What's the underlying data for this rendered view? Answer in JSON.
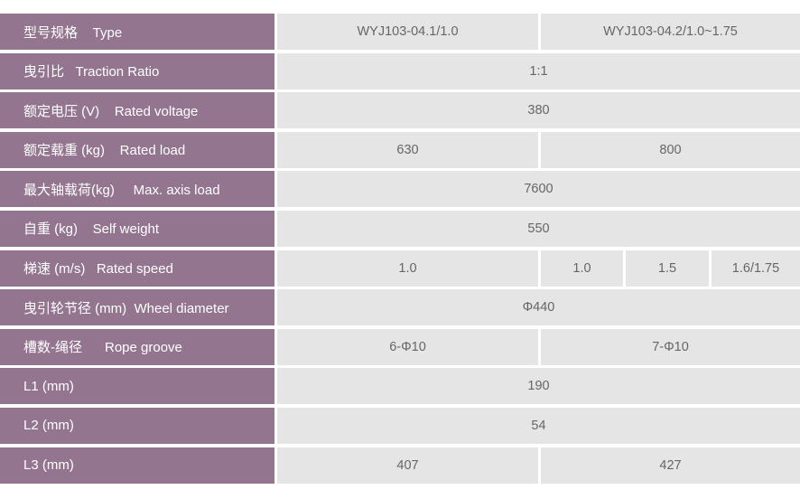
{
  "spec_table": {
    "colors": {
      "label_bg": "#937590",
      "cell_bg": "#e4e5e4",
      "label_text": "#ffffff",
      "cell_text": "#666666"
    },
    "rows": [
      {
        "label": "型号规格    Type",
        "values": [
          "WYJ103-04.1/1.0",
          "WYJ103-04.2/1.0~1.75"
        ]
      },
      {
        "label": "曳引比   Traction Ratio",
        "values": [
          "1:1"
        ]
      },
      {
        "label": "额定电压 (V)    Rated voltage",
        "values": [
          "380"
        ]
      },
      {
        "label": "额定载重 (kg)    Rated load",
        "values": [
          "630",
          "800"
        ]
      },
      {
        "label": "最大轴载荷(kg)     Max. axis load",
        "values": [
          "7600"
        ]
      },
      {
        "label": "自重 (kg)    Self weight",
        "values": [
          "550"
        ]
      },
      {
        "label": "梯速 (m/s)   Rated speed",
        "values": [
          "1.0",
          "1.0",
          "1.5",
          "1.6/1.75"
        ]
      },
      {
        "label": "曳引轮节径 (mm)  Wheel diameter",
        "values": [
          "Φ440"
        ]
      },
      {
        "label": "槽数-绳径      Rope groove",
        "values": [
          "6-Φ10",
          "7-Φ10"
        ]
      },
      {
        "label": "L1 (mm)",
        "values": [
          "190"
        ]
      },
      {
        "label": "L2 (mm)",
        "values": [
          "54"
        ]
      },
      {
        "label": "L3 (mm)",
        "values": [
          "407",
          "427"
        ]
      }
    ]
  }
}
